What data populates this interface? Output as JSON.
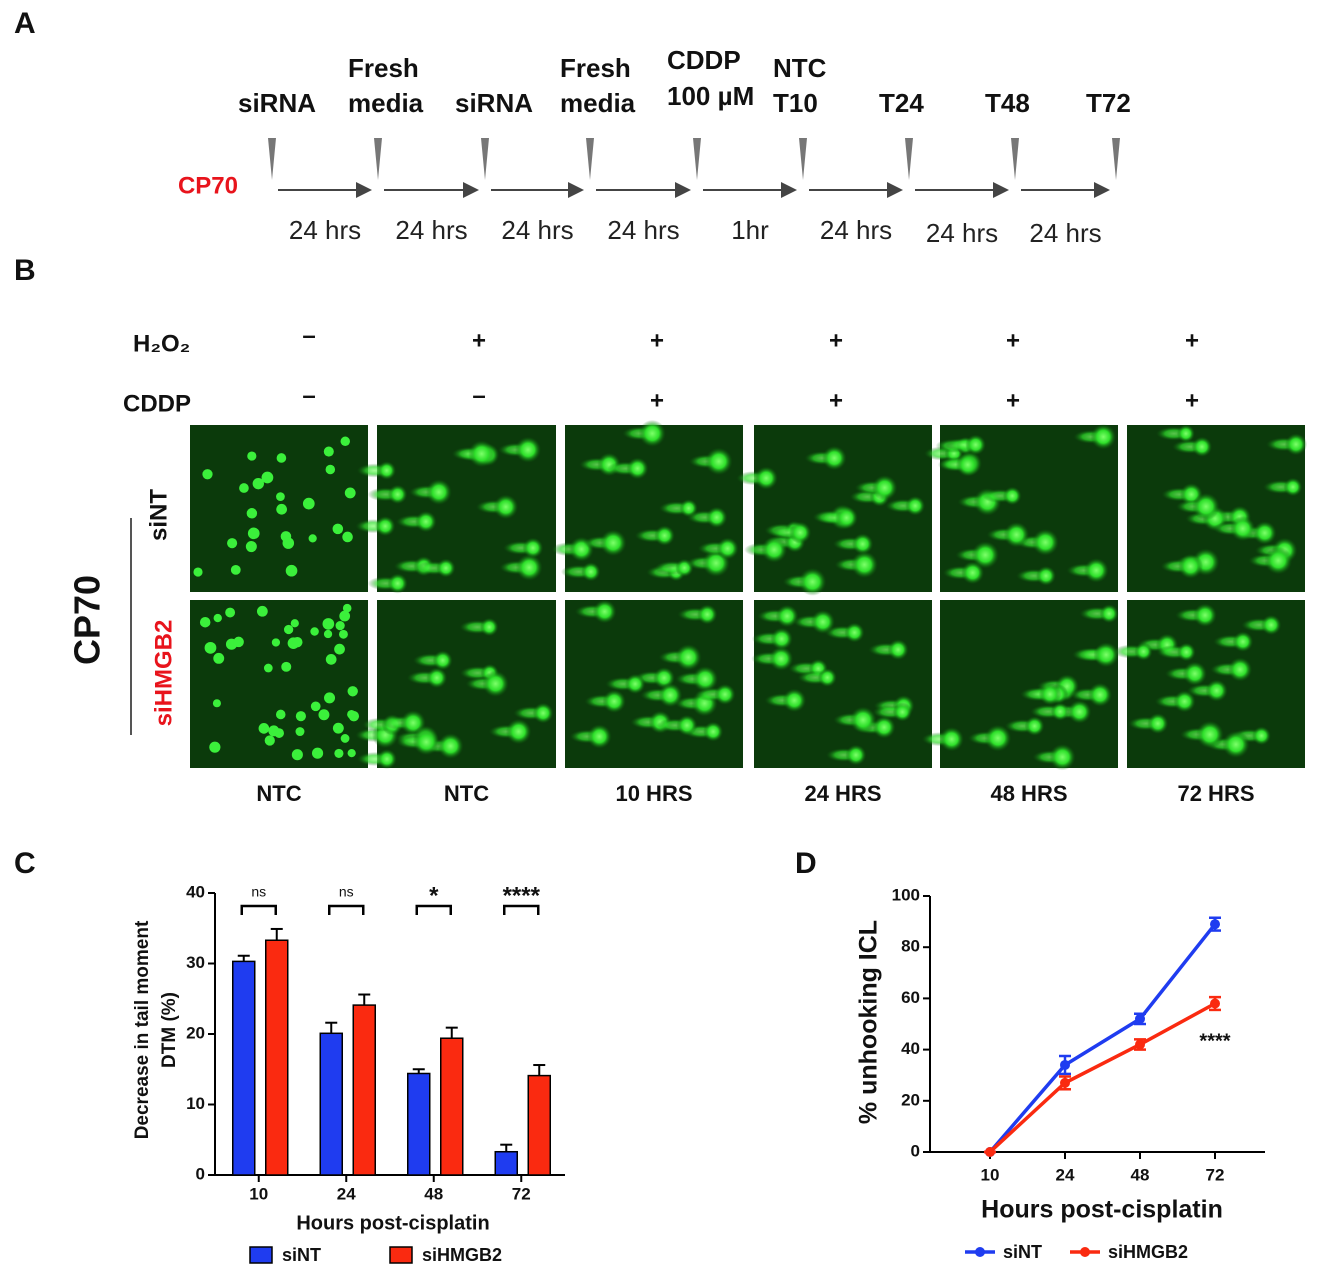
{
  "panel_labels": [
    "A",
    "B",
    "C",
    "D"
  ],
  "timeline": {
    "cell_line": "CP70",
    "events": [
      [
        "siRNA"
      ],
      [
        "Fresh",
        "media"
      ],
      [
        "siRNA"
      ],
      [
        "Fresh",
        "media"
      ],
      [
        "CDDP",
        "100 µM"
      ],
      [
        "NTC",
        "T10"
      ],
      [
        "T24"
      ],
      [
        "T48"
      ],
      [
        "T72"
      ]
    ],
    "durations": [
      "24 hrs",
      "24 hrs",
      "24 hrs",
      "24 hrs",
      "1hr",
      "24 hrs",
      "24 hrs",
      "24 hrs"
    ]
  },
  "comet": {
    "treatments": [
      {
        "name": "H₂O₂",
        "signs": [
          "–",
          "+",
          "+",
          "+",
          "+",
          "+"
        ]
      },
      {
        "name": "CDDP",
        "signs": [
          "–",
          "–",
          "+",
          "+",
          "+",
          "+"
        ]
      }
    ],
    "group": "CP70",
    "rows": [
      "siNT",
      "siHMGB2"
    ],
    "columns": [
      "NTC",
      "NTC",
      "10 HRS",
      "24 HRS",
      "48 HRS",
      "72 HRS"
    ]
  },
  "chart_data": [
    {
      "type": "bar",
      "ylabel": [
        "Decrease in tail moment",
        "DTM (%)"
      ],
      "xlabel": "Hours post-cisplatin",
      "categories": [
        "10",
        "24",
        "48",
        "72"
      ],
      "ylim": [
        0,
        40
      ],
      "yticks": [
        0,
        10,
        20,
        30,
        40
      ],
      "annotations": [
        "ns",
        "ns",
        "*",
        "****"
      ],
      "series": [
        {
          "name": "siNT",
          "color": "#1f3cf0",
          "values": [
            30.3,
            20.1,
            14.4,
            3.3
          ],
          "errors": [
            0.8,
            1.5,
            0.6,
            1.0
          ]
        },
        {
          "name": "siHMGB2",
          "color": "#fa2a10",
          "values": [
            33.3,
            24.1,
            19.4,
            14.1
          ],
          "errors": [
            1.6,
            1.5,
            1.5,
            1.5
          ]
        }
      ]
    },
    {
      "type": "line",
      "ylabel": "% unhooking ICL",
      "xlabel": "Hours post-cisplatin",
      "categories": [
        "10",
        "24",
        "48",
        "72"
      ],
      "ylim": [
        0,
        100
      ],
      "yticks": [
        0,
        20,
        40,
        60,
        80,
        100
      ],
      "annotation": "****",
      "series": [
        {
          "name": "siNT",
          "color": "#1f3cf0",
          "values": [
            0,
            34,
            52,
            89
          ],
          "errors": [
            0,
            3.5,
            2,
            2.5
          ]
        },
        {
          "name": "siHMGB2",
          "color": "#fa2a10",
          "values": [
            0,
            27,
            42,
            58
          ],
          "errors": [
            0,
            2.5,
            2,
            2.5
          ]
        }
      ]
    }
  ]
}
